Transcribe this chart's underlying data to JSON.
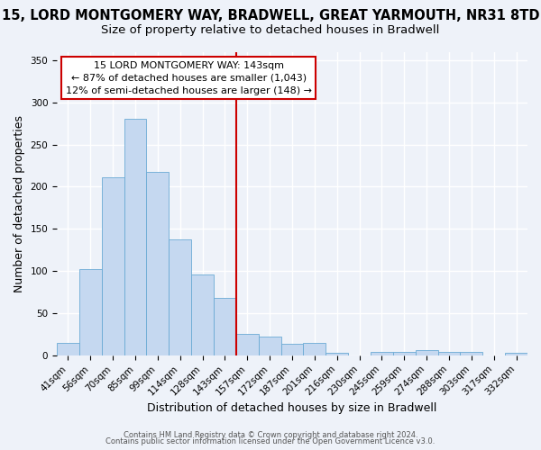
{
  "title_line1": "15, LORD MONTGOMERY WAY, BRADWELL, GREAT YARMOUTH, NR31 8TD",
  "title_line2": "Size of property relative to detached houses in Bradwell",
  "xlabel": "Distribution of detached houses by size in Bradwell",
  "ylabel": "Number of detached properties",
  "footnote1": "Contains HM Land Registry data © Crown copyright and database right 2024.",
  "footnote2": "Contains public sector information licensed under the Open Government Licence v3.0.",
  "bar_labels": [
    "41sqm",
    "56sqm",
    "70sqm",
    "85sqm",
    "99sqm",
    "114sqm",
    "128sqm",
    "143sqm",
    "157sqm",
    "172sqm",
    "187sqm",
    "201sqm",
    "216sqm",
    "230sqm",
    "245sqm",
    "259sqm",
    "274sqm",
    "288sqm",
    "303sqm",
    "317sqm",
    "332sqm"
  ],
  "bar_heights": [
    15,
    102,
    211,
    280,
    218,
    137,
    96,
    68,
    25,
    22,
    14,
    15,
    3,
    0,
    4,
    4,
    6,
    4,
    4,
    0,
    3
  ],
  "bar_color": "#c5d8f0",
  "bar_edge_color": "#6aaad4",
  "vline_color": "#cc0000",
  "annotation_title": "15 LORD MONTGOMERY WAY: 143sqm",
  "annotation_line1": "← 87% of detached houses are smaller (1,043)",
  "annotation_line2": "12% of semi-detached houses are larger (148) →",
  "annotation_box_facecolor": "#ffffff",
  "annotation_box_edgecolor": "#cc0000",
  "ylim": [
    0,
    360
  ],
  "yticks": [
    0,
    50,
    100,
    150,
    200,
    250,
    300,
    350
  ],
  "background_color": "#eef2f9",
  "grid_color": "#ffffff",
  "title_fontsize": 10.5,
  "subtitle_fontsize": 9.5,
  "axis_label_fontsize": 9,
  "tick_fontsize": 7.5,
  "annotation_fontsize": 8,
  "footnote_fontsize": 6
}
